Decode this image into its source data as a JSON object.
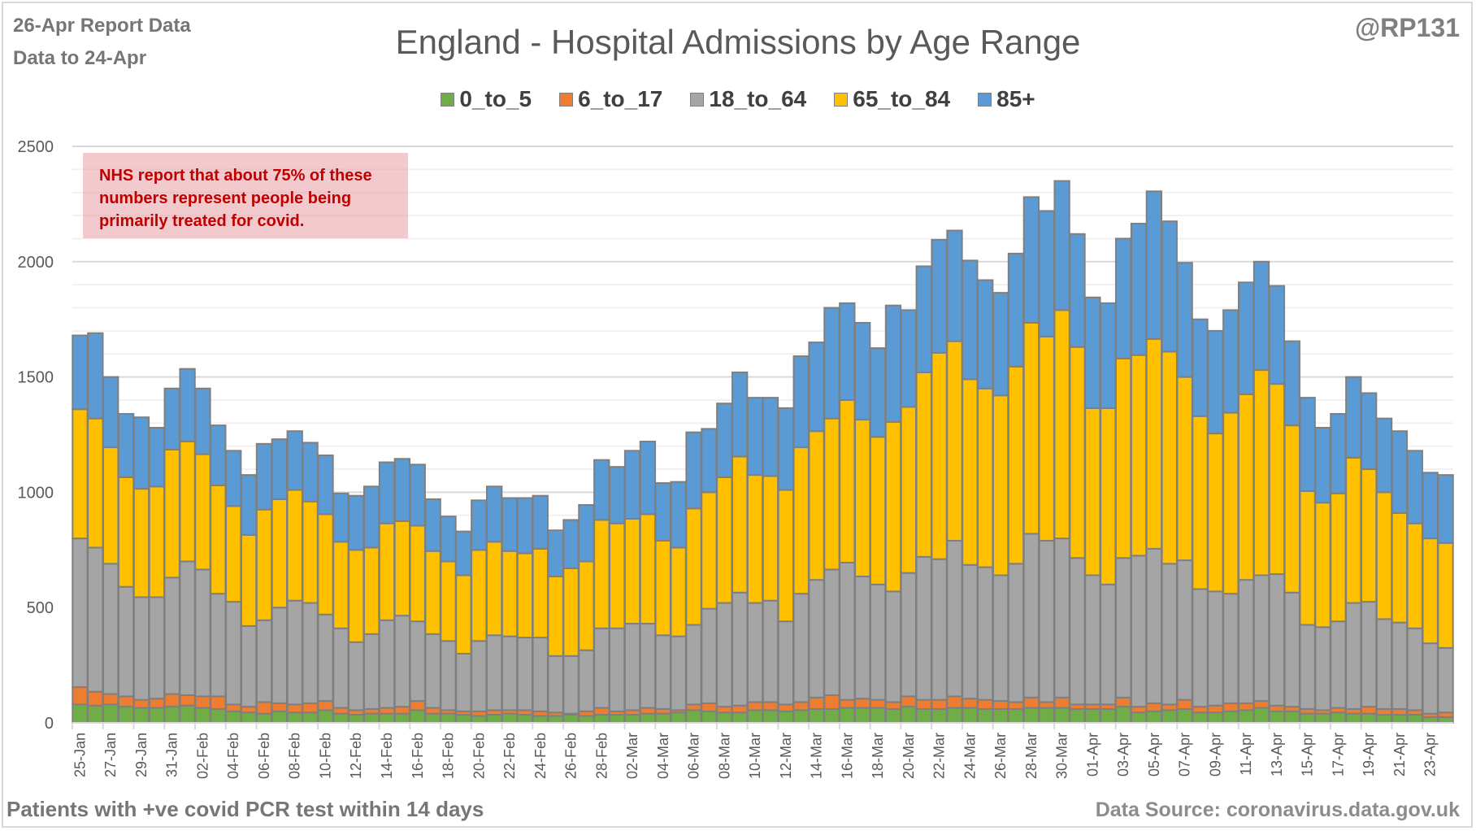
{
  "header": {
    "report_line": "26-Apr Report Data",
    "data_line": "Data to 24-Apr",
    "handle": "@RP131"
  },
  "note": {
    "lines": [
      "NHS report that about 75% of these",
      "numbers represent people being",
      "primarily treated for covid."
    ]
  },
  "footer": {
    "left": "Patients with  +ve covid PCR test within 14 days",
    "right": "Data Source: coronavirus.data.gov.uk"
  },
  "colors": {
    "0_to_5": "#70ad47",
    "6_to_17": "#ed7d31",
    "18_to_64": "#a5a5a5",
    "65_to_84": "#ffc000",
    "85+": "#5b9bd5",
    "bar_outline": "#7f7f7f",
    "grid": "#d9d9d9"
  },
  "chart_data": {
    "type": "bar",
    "stacked": true,
    "title": "England - Hospital Admissions by Age Range",
    "xlabel": "",
    "ylabel": "",
    "ylim": [
      0,
      2500
    ],
    "yticks": [
      0,
      500,
      1000,
      1500,
      2000,
      2500
    ],
    "grid": true,
    "legend_position": "top",
    "categories": [
      "25-Jan",
      "26-Jan",
      "27-Jan",
      "28-Jan",
      "29-Jan",
      "30-Jan",
      "31-Jan",
      "01-Feb",
      "02-Feb",
      "03-Feb",
      "04-Feb",
      "05-Feb",
      "06-Feb",
      "07-Feb",
      "08-Feb",
      "09-Feb",
      "10-Feb",
      "11-Feb",
      "12-Feb",
      "13-Feb",
      "14-Feb",
      "15-Feb",
      "16-Feb",
      "17-Feb",
      "18-Feb",
      "19-Feb",
      "20-Feb",
      "21-Feb",
      "22-Feb",
      "23-Feb",
      "24-Feb",
      "25-Feb",
      "26-Feb",
      "27-Feb",
      "28-Feb",
      "01-Mar",
      "02-Mar",
      "03-Mar",
      "04-Mar",
      "05-Mar",
      "06-Mar",
      "07-Mar",
      "08-Mar",
      "09-Mar",
      "10-Mar",
      "11-Mar",
      "12-Mar",
      "13-Mar",
      "14-Mar",
      "15-Mar",
      "16-Mar",
      "17-Mar",
      "18-Mar",
      "19-Mar",
      "20-Mar",
      "21-Mar",
      "22-Mar",
      "23-Mar",
      "24-Mar",
      "25-Mar",
      "26-Mar",
      "27-Mar",
      "28-Mar",
      "29-Mar",
      "30-Mar",
      "31-Mar",
      "01-Apr",
      "02-Apr",
      "03-Apr",
      "04-Apr",
      "05-Apr",
      "06-Apr",
      "07-Apr",
      "08-Apr",
      "09-Apr",
      "10-Apr",
      "11-Apr",
      "12-Apr",
      "13-Apr",
      "14-Apr",
      "15-Apr",
      "16-Apr",
      "17-Apr",
      "18-Apr",
      "19-Apr",
      "20-Apr",
      "21-Apr",
      "22-Apr",
      "23-Apr",
      "24-Apr"
    ],
    "x_tick_labels_every": 2,
    "series": [
      {
        "name": "0_to_5",
        "values": [
          80,
          75,
          80,
          70,
          65,
          65,
          70,
          75,
          65,
          60,
          50,
          45,
          40,
          50,
          45,
          45,
          55,
          40,
          35,
          40,
          40,
          40,
          55,
          40,
          40,
          35,
          30,
          35,
          40,
          35,
          30,
          30,
          35,
          30,
          35,
          35,
          35,
          40,
          40,
          45,
          55,
          50,
          45,
          45,
          55,
          55,
          50,
          55,
          60,
          60,
          65,
          65,
          65,
          60,
          70,
          60,
          60,
          65,
          65,
          60,
          60,
          60,
          65,
          65,
          65,
          60,
          60,
          60,
          70,
          45,
          50,
          55,
          60,
          45,
          45,
          50,
          55,
          65,
          50,
          50,
          40,
          40,
          45,
          40,
          40,
          35,
          35,
          35,
          25,
          25
        ]
      },
      {
        "name": "6_to_17",
        "values": [
          75,
          60,
          45,
          45,
          35,
          40,
          55,
          45,
          50,
          55,
          30,
          25,
          50,
          35,
          35,
          40,
          40,
          25,
          20,
          20,
          25,
          30,
          40,
          25,
          15,
          15,
          20,
          20,
          15,
          20,
          20,
          15,
          5,
          20,
          30,
          15,
          20,
          25,
          20,
          10,
          25,
          35,
          25,
          30,
          35,
          35,
          30,
          35,
          50,
          60,
          35,
          40,
          35,
          30,
          45,
          40,
          40,
          50,
          40,
          40,
          35,
          30,
          45,
          25,
          45,
          20,
          20,
          20,
          40,
          25,
          35,
          25,
          40,
          25,
          30,
          35,
          30,
          30,
          25,
          20,
          20,
          15,
          20,
          20,
          30,
          25,
          25,
          20,
          15,
          20
        ]
      },
      {
        "name": "18_to_64",
        "values": [
          645,
          625,
          565,
          475,
          445,
          440,
          505,
          580,
          550,
          445,
          445,
          350,
          355,
          415,
          450,
          435,
          375,
          345,
          295,
          325,
          380,
          395,
          345,
          320,
          300,
          250,
          305,
          325,
          320,
          315,
          320,
          245,
          250,
          265,
          345,
          360,
          375,
          365,
          320,
          320,
          345,
          410,
          450,
          490,
          430,
          440,
          360,
          470,
          510,
          545,
          595,
          530,
          500,
          480,
          535,
          620,
          610,
          675,
          580,
          575,
          545,
          600,
          710,
          700,
          690,
          635,
          560,
          520,
          605,
          655,
          670,
          610,
          605,
          510,
          495,
          475,
          535,
          545,
          570,
          495,
          365,
          360,
          375,
          460,
          455,
          390,
          375,
          355,
          305,
          280
        ]
      },
      {
        "name": "65_to_84",
        "values": [
          560,
          560,
          505,
          475,
          470,
          480,
          555,
          520,
          500,
          470,
          415,
          395,
          480,
          470,
          480,
          440,
          435,
          375,
          400,
          375,
          420,
          410,
          415,
          360,
          345,
          340,
          395,
          405,
          370,
          365,
          385,
          345,
          380,
          385,
          470,
          455,
          455,
          475,
          410,
          385,
          505,
          505,
          545,
          590,
          555,
          540,
          570,
          635,
          645,
          655,
          705,
          680,
          640,
          735,
          720,
          800,
          895,
          865,
          805,
          775,
          780,
          855,
          915,
          885,
          990,
          915,
          725,
          765,
          865,
          870,
          910,
          920,
          795,
          750,
          685,
          785,
          805,
          890,
          825,
          725,
          580,
          540,
          555,
          630,
          575,
          550,
          475,
          455,
          455,
          455
        ]
      },
      {
        "name": "85+",
        "values": [
          320,
          370,
          305,
          275,
          310,
          255,
          265,
          315,
          285,
          260,
          240,
          260,
          285,
          260,
          255,
          255,
          255,
          210,
          235,
          265,
          265,
          270,
          265,
          225,
          195,
          190,
          215,
          240,
          230,
          240,
          230,
          200,
          210,
          245,
          260,
          245,
          295,
          315,
          250,
          285,
          330,
          275,
          320,
          365,
          335,
          340,
          355,
          395,
          385,
          480,
          420,
          420,
          385,
          505,
          420,
          460,
          490,
          480,
          515,
          470,
          445,
          490,
          545,
          545,
          560,
          490,
          480,
          455,
          520,
          570,
          640,
          565,
          495,
          420,
          445,
          445,
          485,
          470,
          425,
          365,
          405,
          325,
          345,
          350,
          330,
          320,
          355,
          315,
          285,
          295
        ]
      }
    ]
  }
}
